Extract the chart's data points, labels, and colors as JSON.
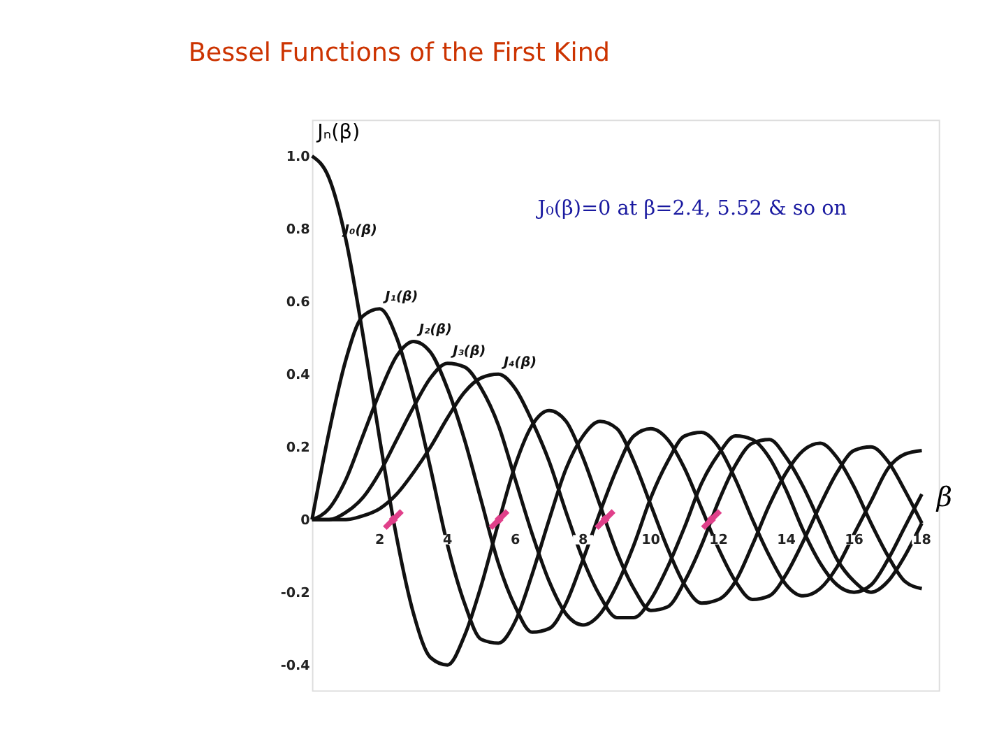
{
  "chart_data": {
    "type": "line",
    "title": "Bessel Functions of the First Kind",
    "xlabel": "β",
    "ylabel": "Jₙ(β)",
    "x": [
      0,
      0.5,
      1,
      1.5,
      2,
      2.5,
      3,
      3.5,
      4,
      4.5,
      5,
      5.5,
      6,
      6.5,
      7,
      7.5,
      8,
      8.5,
      9,
      9.5,
      10,
      10.5,
      11,
      11.5,
      12,
      12.5,
      13,
      13.5,
      14,
      14.5,
      15,
      15.5,
      16,
      16.5,
      17,
      17.5,
      18
    ],
    "series": [
      {
        "name": "J₀(β)",
        "color": "#111111",
        "values": [
          1,
          0.94,
          0.77,
          0.51,
          0.22,
          -0.05,
          -0.26,
          -0.38,
          -0.4,
          -0.32,
          -0.18,
          -0.01,
          0.15,
          0.26,
          0.3,
          0.27,
          0.17,
          0.04,
          -0.09,
          -0.19,
          -0.25,
          -0.24,
          -0.17,
          -0.07,
          0.05,
          0.15,
          0.21,
          0.22,
          0.17,
          0.09,
          -0.01,
          -0.11,
          -0.17,
          -0.2,
          -0.17,
          -0.1,
          -0.01
        ]
      },
      {
        "name": "J₁(β)",
        "color": "#111111",
        "values": [
          0,
          0.24,
          0.44,
          0.56,
          0.58,
          0.5,
          0.34,
          0.14,
          -0.07,
          -0.23,
          -0.33,
          -0.34,
          -0.28,
          -0.15,
          0.0,
          0.14,
          0.23,
          0.27,
          0.25,
          0.16,
          0.04,
          -0.08,
          -0.18,
          -0.23,
          -0.22,
          -0.17,
          -0.07,
          0.04,
          0.13,
          0.19,
          0.21,
          0.17,
          0.09,
          -0.01,
          -0.1,
          -0.17,
          -0.19
        ]
      },
      {
        "name": "J₂(β)",
        "color": "#111111",
        "values": [
          0,
          0.03,
          0.11,
          0.23,
          0.35,
          0.45,
          0.49,
          0.46,
          0.36,
          0.22,
          0.05,
          -0.12,
          -0.24,
          -0.31,
          -0.3,
          -0.23,
          -0.11,
          0.02,
          0.14,
          0.23,
          0.25,
          0.22,
          0.14,
          0.03,
          -0.08,
          -0.17,
          -0.22,
          -0.21,
          -0.15,
          -0.06,
          0.04,
          0.13,
          0.19,
          0.2,
          0.16,
          0.08,
          -0.01
        ]
      },
      {
        "name": "J₃(β)",
        "color": "#111111",
        "values": [
          0,
          0.0,
          0.02,
          0.06,
          0.13,
          0.22,
          0.31,
          0.39,
          0.43,
          0.42,
          0.36,
          0.26,
          0.11,
          -0.04,
          -0.17,
          -0.26,
          -0.29,
          -0.26,
          -0.18,
          -0.07,
          0.06,
          0.16,
          0.23,
          0.24,
          0.2,
          0.11,
          0.0,
          -0.1,
          -0.18,
          -0.21,
          -0.19,
          -0.13,
          -0.04,
          0.05,
          0.14,
          0.18,
          0.19
        ]
      },
      {
        "name": "J₄(β)",
        "color": "#111111",
        "values": [
          0,
          0.0,
          0.0,
          0.01,
          0.03,
          0.07,
          0.13,
          0.2,
          0.28,
          0.35,
          0.39,
          0.4,
          0.36,
          0.27,
          0.16,
          0.02,
          -0.11,
          -0.21,
          -0.27,
          -0.27,
          -0.22,
          -0.13,
          -0.02,
          0.1,
          0.18,
          0.23,
          0.22,
          0.17,
          0.08,
          -0.03,
          -0.12,
          -0.18,
          -0.2,
          -0.18,
          -0.11,
          -0.02,
          0.07
        ]
      },
      {
        "type": "scatter",
        "marker": "cross",
        "color": "#e0408a",
        "x": [
          2.4,
          5.52,
          8.65,
          11.79
        ],
        "values": [
          0,
          0,
          0,
          0
        ]
      }
    ],
    "xlim": [
      0,
      18.5
    ],
    "xticks": [
      2,
      4,
      6,
      8,
      10,
      12,
      14,
      16,
      18
    ],
    "ylim": [
      -0.47,
      1.1
    ],
    "yticks": [
      {
        "value": 1,
        "label": "1.0"
      },
      0.8,
      0.6,
      0.4,
      0.2,
      0,
      -0.2,
      -0.4
    ],
    "annotations": [
      "J₀(β)=0 at β=2.4, 5.52 & so on"
    ],
    "grid": false
  }
}
